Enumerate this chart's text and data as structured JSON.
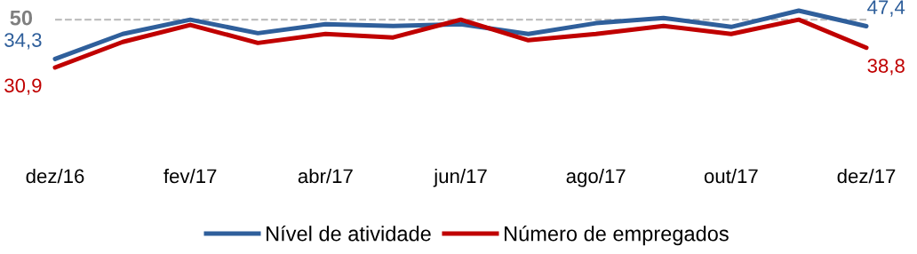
{
  "chart_data": {
    "type": "line",
    "categories": [
      "dez/16",
      null,
      "fev/17",
      null,
      "abr/17",
      null,
      "jun/17",
      null,
      "ago/17",
      null,
      "out/17",
      null,
      "dez/17"
    ],
    "series": [
      {
        "name": "Nível de atividade",
        "color": "#2f5f9b",
        "values": [
          34.3,
          44.3,
          50.0,
          44.6,
          48.2,
          47.5,
          48.2,
          44.3,
          48.6,
          50.7,
          47.1,
          53.6,
          47.4
        ],
        "value_labels": [
          "34,3",
          null,
          null,
          null,
          null,
          null,
          null,
          null,
          null,
          null,
          null,
          null,
          "47,4"
        ]
      },
      {
        "name": "Número de empregados",
        "color": "#c00000",
        "values": [
          30.9,
          41.1,
          47.9,
          40.7,
          44.3,
          42.9,
          50.0,
          41.8,
          44.3,
          47.5,
          44.3,
          50.0,
          38.8
        ],
        "value_labels": [
          "30,9",
          null,
          null,
          null,
          null,
          null,
          null,
          null,
          null,
          null,
          null,
          null,
          "38,8"
        ]
      }
    ],
    "ref_lines": [
      {
        "axis": "y",
        "value": 50,
        "label": "50",
        "color": "#bfbfbf",
        "line_style": "dashed"
      }
    ],
    "legend": "bottom",
    "grid": false,
    "marker": "none",
    "line_style": "solid"
  }
}
